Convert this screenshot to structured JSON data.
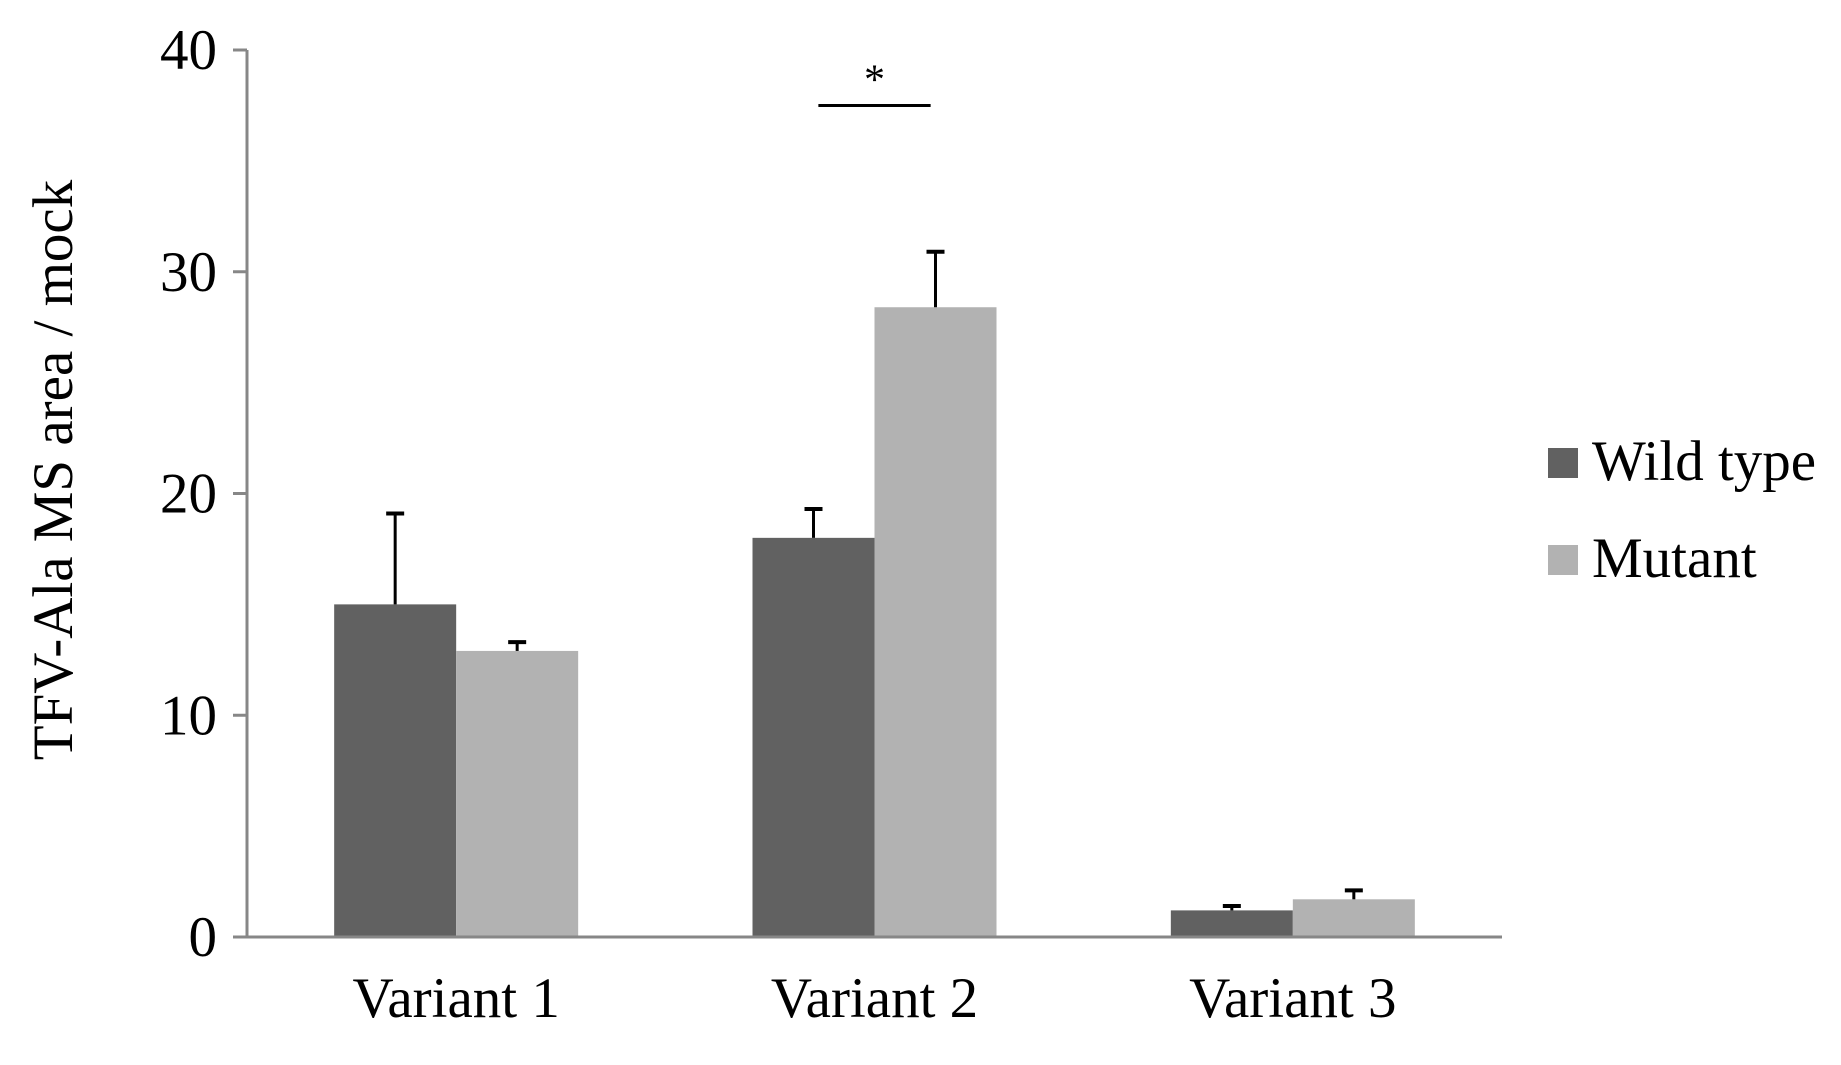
{
  "chart_data": {
    "type": "bar",
    "title": "",
    "xlabel": "",
    "ylabel": "TFV-Ala MS area / mock",
    "ylim": [
      0,
      40
    ],
    "yticks": [
      "0",
      "10",
      "20",
      "30",
      "40"
    ],
    "categories": [
      "Variant 1",
      "Variant 2",
      "Variant 3"
    ],
    "series": [
      {
        "name": "Wild type",
        "color": "#616161",
        "values": [
          15.0,
          18.0,
          1.2
        ],
        "errors": [
          4.1,
          1.3,
          0.2
        ]
      },
      {
        "name": "Mutant",
        "color": "#b2b2b2",
        "values": [
          12.9,
          28.4,
          1.7
        ],
        "errors": [
          0.4,
          2.5,
          0.4
        ]
      }
    ],
    "annotations": [
      {
        "text": "*",
        "category": "Variant 2",
        "y": 37.5
      }
    ],
    "grid": false,
    "legend": "right",
    "axis_color": "#878787"
  }
}
